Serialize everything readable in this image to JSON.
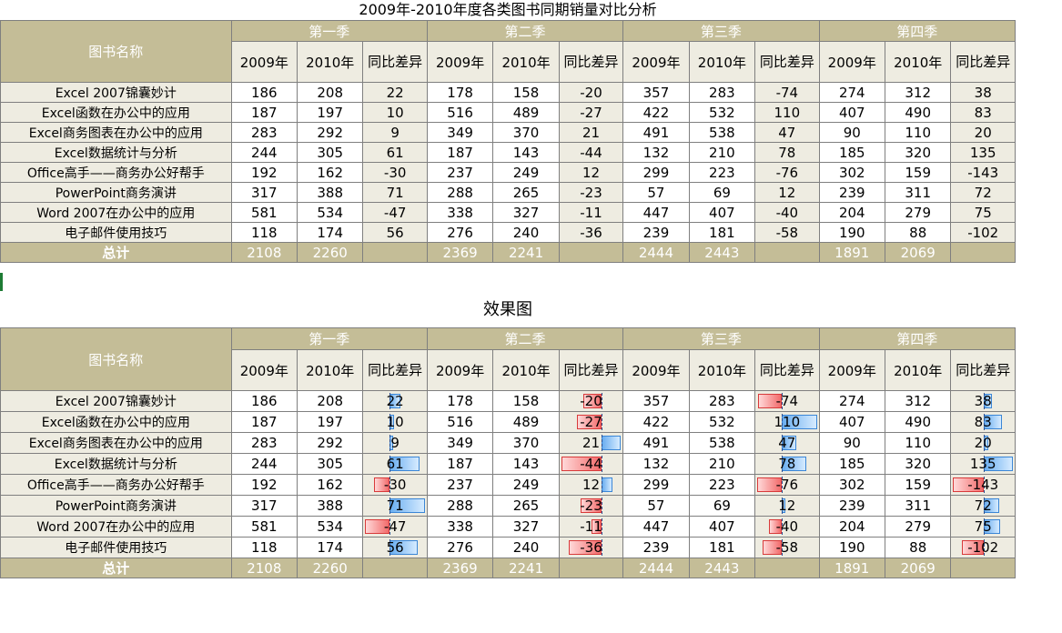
{
  "title": "2009年-2010年度各类图书同期销量对比分析",
  "effect_title": "效果图",
  "headers": {
    "book_name": "图书名称",
    "quarters": [
      "第一季",
      "第二季",
      "第三季",
      "第四季"
    ],
    "year_2009": "2009年",
    "year_2010": "2010年",
    "diff": "同比差异"
  },
  "rows": [
    {
      "name": "Excel 2007锦囊妙计",
      "vals": [
        186,
        208,
        22,
        178,
        158,
        -20,
        357,
        283,
        -74,
        274,
        312,
        38
      ]
    },
    {
      "name": "Excel函数在办公中的应用",
      "vals": [
        187,
        197,
        10,
        516,
        489,
        -27,
        422,
        532,
        110,
        407,
        490,
        83
      ]
    },
    {
      "name": "Excel商务图表在办公中的应用",
      "vals": [
        283,
        292,
        9,
        349,
        370,
        21,
        491,
        538,
        47,
        90,
        110,
        20
      ]
    },
    {
      "name": "Excel数据统计与分析",
      "vals": [
        244,
        305,
        61,
        187,
        143,
        -44,
        132,
        210,
        78,
        185,
        320,
        135
      ]
    },
    {
      "name": "Office高手——商务办公好帮手",
      "vals": [
        192,
        162,
        -30,
        237,
        249,
        12,
        299,
        223,
        -76,
        302,
        159,
        -143
      ]
    },
    {
      "name": "PowerPoint商务演讲",
      "vals": [
        317,
        388,
        71,
        288,
        265,
        -23,
        57,
        69,
        12,
        239,
        311,
        72
      ]
    },
    {
      "name": "Word 2007在办公中的应用",
      "vals": [
        581,
        534,
        -47,
        338,
        327,
        -11,
        447,
        407,
        -40,
        204,
        279,
        75
      ]
    },
    {
      "name": "电子邮件使用技巧",
      "vals": [
        118,
        174,
        56,
        276,
        240,
        -36,
        239,
        181,
        -58,
        190,
        88,
        -102
      ]
    }
  ],
  "totals": {
    "label": "总计",
    "vals": [
      2108,
      2260,
      "",
      2369,
      2241,
      "",
      2444,
      2443,
      "",
      1891,
      2069,
      ""
    ]
  },
  "colors": {
    "header_bg": "#c4bd97",
    "light_bg": "#eeece1",
    "positive_bar": "#3b86d6",
    "negative_bar": "#d83a3a"
  }
}
